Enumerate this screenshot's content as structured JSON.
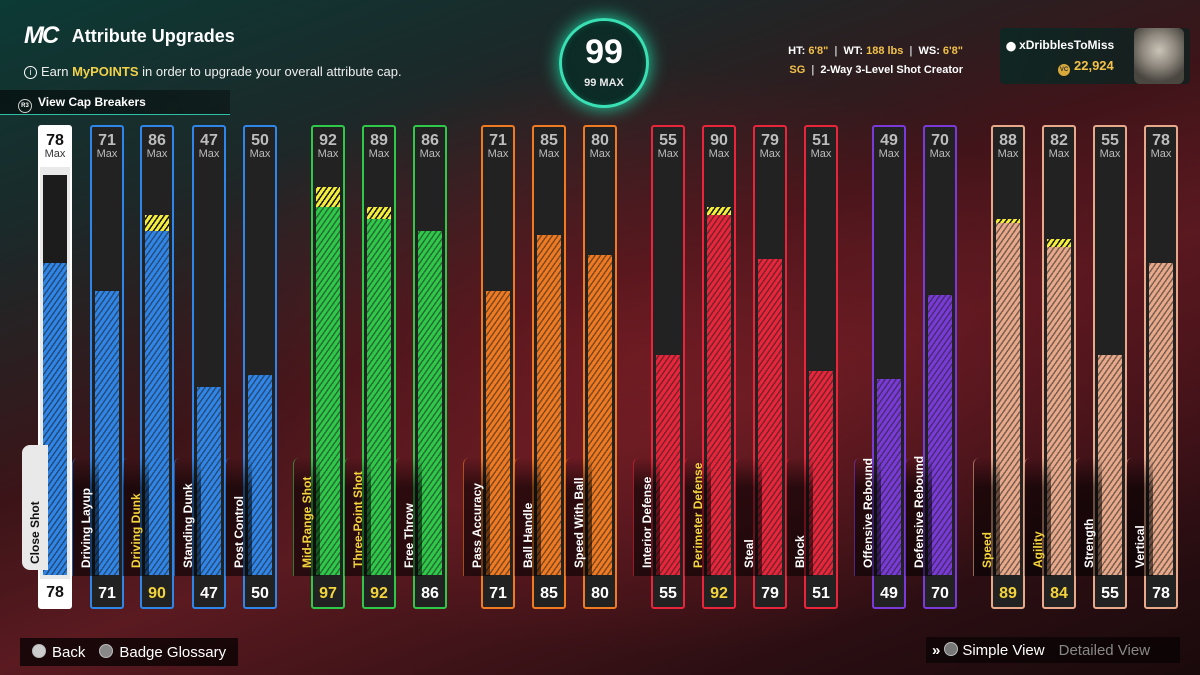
{
  "header": {
    "logo": "MC",
    "title": "Attribute Upgrades",
    "subtitle_pre": "Earn ",
    "subtitle_highlight": "MyPOINTS",
    "subtitle_post": " in order to upgrade your overall attribute cap.",
    "cap_breakers": "View Cap Breakers"
  },
  "overall": {
    "value": "99",
    "max_label": "99 MAX"
  },
  "bio": {
    "ht_label": "HT:",
    "ht": "6'8\"",
    "wt_label": "WT:",
    "wt": "188 lbs",
    "ws_label": "WS:",
    "ws": "6'8\"",
    "position": "SG",
    "archetype": "2-Way 3-Level Shot Creator"
  },
  "profile": {
    "gamertag": "xDribblesToMiss",
    "vc": "22,924"
  },
  "attributes": [
    {
      "name": "Close Shot",
      "max": "78",
      "value": "78",
      "color": "#ffffff",
      "upgraded": false
    },
    {
      "name": "Driving Layup",
      "max": "71",
      "value": "71",
      "color": "#2f86e8",
      "upgraded": false
    },
    {
      "name": "Driving Dunk",
      "max": "86",
      "value": "90",
      "color": "#2f86e8",
      "upgraded": true
    },
    {
      "name": "Standing Dunk",
      "max": "47",
      "value": "47",
      "color": "#2f86e8",
      "upgraded": false
    },
    {
      "name": "Post Control",
      "max": "50",
      "value": "50",
      "color": "#2f86e8",
      "upgraded": false
    },
    {
      "name": "Mid-Range Shot",
      "max": "92",
      "value": "97",
      "color": "#2fc94a",
      "upgraded": true
    },
    {
      "name": "Three-Point Shot",
      "max": "89",
      "value": "92",
      "color": "#2fc94a",
      "upgraded": true
    },
    {
      "name": "Free Throw",
      "max": "86",
      "value": "86",
      "color": "#2fc94a",
      "upgraded": false
    },
    {
      "name": "Pass Accuracy",
      "max": "71",
      "value": "71",
      "color": "#f07a22",
      "upgraded": false
    },
    {
      "name": "Ball Handle",
      "max": "85",
      "value": "85",
      "color": "#f07a22",
      "upgraded": false
    },
    {
      "name": "Speed With Ball",
      "max": "80",
      "value": "80",
      "color": "#f07a22",
      "upgraded": false
    },
    {
      "name": "Interior Defense",
      "max": "55",
      "value": "55",
      "color": "#e8253a",
      "upgraded": false
    },
    {
      "name": "Perimeter Defense",
      "max": "90",
      "value": "92",
      "color": "#e8253a",
      "upgraded": true
    },
    {
      "name": "Steal",
      "max": "79",
      "value": "79",
      "color": "#e8253a",
      "upgraded": false
    },
    {
      "name": "Block",
      "max": "51",
      "value": "51",
      "color": "#e8253a",
      "upgraded": false
    },
    {
      "name": "Offensive Rebound",
      "max": "49",
      "value": "49",
      "color": "#7a3ad8",
      "upgraded": false
    },
    {
      "name": "Defensive Rebound",
      "max": "70",
      "value": "70",
      "color": "#7a3ad8",
      "upgraded": false
    },
    {
      "name": "Speed",
      "max": "88",
      "value": "89",
      "color": "#e8a98a",
      "upgraded": true
    },
    {
      "name": "Agility",
      "max": "82",
      "value": "84",
      "color": "#e8a98a",
      "upgraded": true
    },
    {
      "name": "Strength",
      "max": "55",
      "value": "55",
      "color": "#e8a98a",
      "upgraded": false
    },
    {
      "name": "Vertical",
      "max": "78",
      "value": "78",
      "color": "#e8a98a",
      "upgraded": false
    }
  ],
  "labels": {
    "max": "Max"
  },
  "footer": {
    "back": "Back",
    "glossary": "Badge Glossary",
    "simple_view": "Simple View",
    "detailed_view": "Detailed View"
  }
}
